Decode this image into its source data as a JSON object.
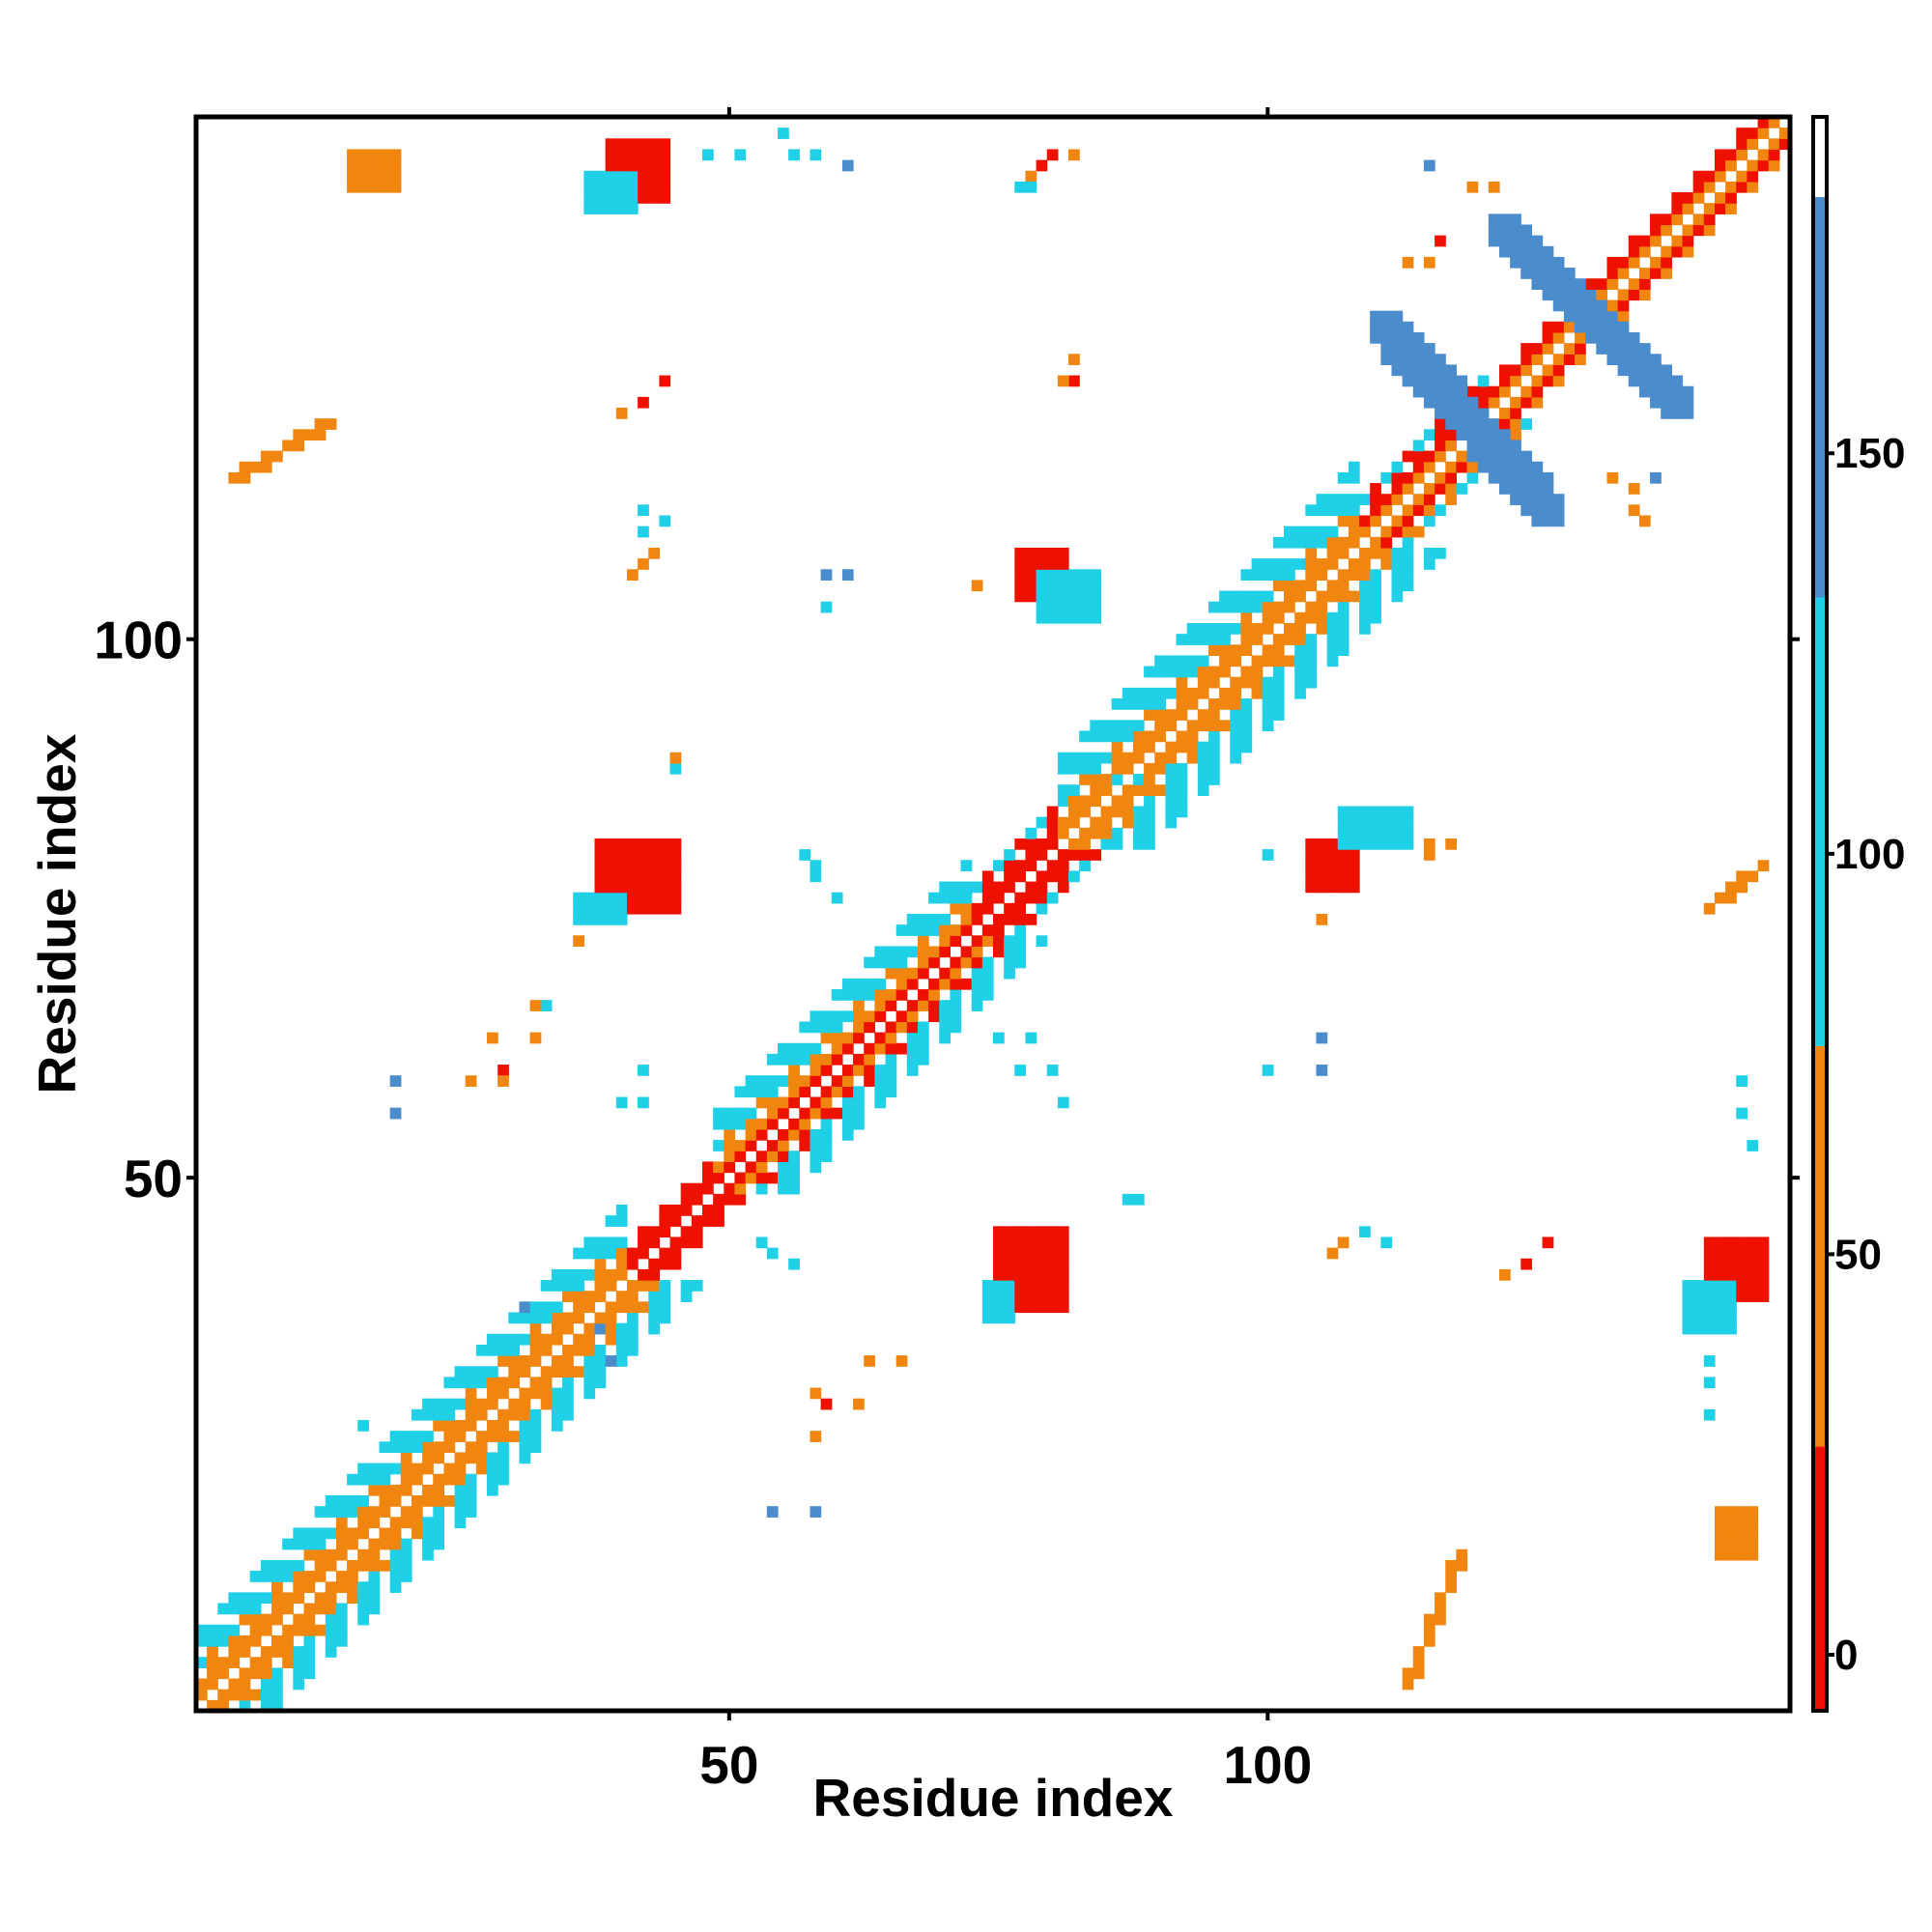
{
  "chart_data": {
    "type": "heatmap",
    "title": "",
    "xlabel": "Residue index",
    "ylabel": "Residue index",
    "xlim": [
      1,
      148
    ],
    "ylim": [
      1,
      148
    ],
    "x_ticks": [
      50,
      100
    ],
    "y_ticks": [
      50,
      100
    ],
    "grid": false,
    "colorbar": {
      "ticks": [
        0,
        50,
        100,
        150
      ],
      "range": [
        -7,
        192
      ],
      "bands": [
        {
          "from": -7,
          "to": 26,
          "color": "#ee1100"
        },
        {
          "from": 26,
          "to": 76,
          "color": "#f0860f"
        },
        {
          "from": 76,
          "to": 132,
          "color": "#1fd0e6"
        },
        {
          "from": 132,
          "to": 182,
          "color": "#4a8ccc"
        },
        {
          "from": 182,
          "to": 192,
          "color": "#ffffff"
        }
      ]
    },
    "colors": {
      "red": "#ee1100",
      "orange": "#f0860f",
      "cyan": "#1fd0e6",
      "steelblue": "#4a8ccc"
    },
    "diagonal_bands": [
      {
        "from": 1,
        "to": 40,
        "upper": "orange",
        "lower": "orange",
        "outer": "cyan",
        "outer_width": 4
      },
      {
        "from": 40,
        "to": 48,
        "upper": "red",
        "lower": "red",
        "outer": null,
        "outer_width": 0
      },
      {
        "from": 48,
        "to": 72,
        "upper": "orange",
        "lower": "red",
        "outer": "cyan",
        "outer_width": 4
      },
      {
        "from": 72,
        "to": 80,
        "upper": "red",
        "lower": "red",
        "outer": "cyan",
        "outer_width": 1
      },
      {
        "from": 80,
        "to": 108,
        "upper": "orange",
        "lower": "orange",
        "outer": "cyan",
        "outer_width": 5
      },
      {
        "from": 108,
        "to": 120,
        "upper": "red",
        "lower": "orange",
        "outer": "cyan",
        "outer_width": 1
      },
      {
        "from": 120,
        "to": 148,
        "upper": "red",
        "lower": "orange",
        "outer": null,
        "outer_width": 0
      }
    ],
    "patches": [
      {
        "x0": 75,
        "y0": 38,
        "x1": 81,
        "y1": 45,
        "color": "red"
      },
      {
        "x0": 38,
        "y0": 75,
        "x1": 45,
        "y1": 81,
        "color": "red"
      },
      {
        "x0": 104,
        "y0": 77,
        "x1": 108,
        "y1": 81,
        "color": "red"
      },
      {
        "x0": 77,
        "y0": 104,
        "x1": 81,
        "y1": 108,
        "color": "red"
      },
      {
        "x0": 39,
        "y0": 141,
        "x1": 44,
        "y1": 146,
        "color": "red"
      },
      {
        "x0": 141,
        "y0": 39,
        "x1": 146,
        "y1": 44,
        "color": "red"
      },
      {
        "x0": 15,
        "y0": 142,
        "x1": 19,
        "y1": 145,
        "color": "orange"
      },
      {
        "x0": 142,
        "y0": 15,
        "x1": 145,
        "y1": 19,
        "color": "orange"
      },
      {
        "x0": 79,
        "y0": 102,
        "x1": 84,
        "y1": 106,
        "color": "cyan"
      },
      {
        "x0": 107,
        "y0": 81,
        "x1": 113,
        "y1": 84,
        "color": "cyan"
      },
      {
        "x0": 37,
        "y0": 140,
        "x1": 41,
        "y1": 143,
        "color": "cyan"
      },
      {
        "x0": 139,
        "y0": 36,
        "x1": 143,
        "y1": 40,
        "color": "cyan"
      },
      {
        "x0": 74,
        "y0": 37,
        "x1": 76,
        "y1": 40,
        "color": "cyan"
      },
      {
        "x0": 36,
        "y0": 74,
        "x1": 40,
        "y1": 76,
        "color": "cyan"
      }
    ],
    "strips": [
      {
        "ax": 111,
        "ay": 129,
        "bx": 126,
        "by": 112,
        "width": 2.4,
        "color": "steelblue"
      },
      {
        "ax": 122,
        "ay": 138,
        "bx": 138,
        "by": 122,
        "width": 2.4,
        "color": "steelblue"
      },
      {
        "ax": 4,
        "ay": 115,
        "bx": 13,
        "by": 120,
        "width": 1.2,
        "color": "orange"
      },
      {
        "ax": 113,
        "ay": 3,
        "bx": 118,
        "by": 15,
        "width": 1.1,
        "color": "orange"
      },
      {
        "ax": 141,
        "ay": 75,
        "bx": 146,
        "by": 79,
        "width": 1.0,
        "color": "orange"
      }
    ],
    "scatter_cells": [
      [
        61,
        144,
        "steelblue"
      ],
      [
        58,
        145,
        "cyan"
      ],
      [
        55,
        147,
        "cyan"
      ],
      [
        51,
        145,
        "cyan"
      ],
      [
        48,
        145,
        "cyan"
      ],
      [
        56,
        145,
        "cyan"
      ],
      [
        80,
        145,
        "red"
      ],
      [
        82,
        145,
        "orange"
      ],
      [
        79,
        144,
        "red"
      ],
      [
        78,
        143,
        "orange"
      ],
      [
        77,
        142,
        "cyan"
      ],
      [
        78,
        142,
        "cyan"
      ],
      [
        119,
        142,
        "orange"
      ],
      [
        121,
        142,
        "orange"
      ],
      [
        115,
        144,
        "steelblue"
      ],
      [
        113,
        135,
        "orange"
      ],
      [
        115,
        135,
        "orange"
      ],
      [
        116,
        137,
        "red"
      ],
      [
        44,
        124,
        "red"
      ],
      [
        42,
        122,
        "red"
      ],
      [
        40,
        121,
        "orange"
      ],
      [
        82,
        126,
        "orange"
      ],
      [
        82,
        124,
        "red"
      ],
      [
        81,
        124,
        "orange"
      ],
      [
        42,
        112,
        "cyan"
      ],
      [
        44,
        111,
        "cyan"
      ],
      [
        42,
        110,
        "cyan"
      ],
      [
        43,
        108,
        "orange"
      ],
      [
        42,
        107,
        "orange"
      ],
      [
        41,
        106,
        "orange"
      ],
      [
        59,
        106,
        "steelblue"
      ],
      [
        61,
        106,
        "steelblue"
      ],
      [
        59,
        103,
        "cyan"
      ],
      [
        80,
        103,
        "cyan"
      ],
      [
        73,
        105,
        "orange"
      ],
      [
        136,
        115,
        "steelblue"
      ],
      [
        132,
        115,
        "orange"
      ],
      [
        134,
        114,
        "orange"
      ],
      [
        134,
        112,
        "orange"
      ],
      [
        135,
        111,
        "orange"
      ],
      [
        45,
        88,
        "cyan"
      ],
      [
        45,
        89,
        "orange"
      ],
      [
        91,
        88,
        "cyan"
      ],
      [
        88,
        87,
        "cyan"
      ],
      [
        86,
        87,
        "cyan"
      ],
      [
        57,
        80,
        "cyan"
      ],
      [
        58,
        79,
        "cyan"
      ],
      [
        58,
        78,
        "cyan"
      ],
      [
        60,
        76,
        "cyan"
      ],
      [
        100,
        80,
        "cyan"
      ],
      [
        105,
        74,
        "orange"
      ],
      [
        115,
        81,
        "orange"
      ],
      [
        117,
        81,
        "orange"
      ],
      [
        115,
        80,
        "orange"
      ],
      [
        36,
        72,
        "orange"
      ],
      [
        33,
        66,
        "cyan"
      ],
      [
        32,
        66,
        "orange"
      ],
      [
        28,
        63,
        "orange"
      ],
      [
        32,
        63,
        "orange"
      ],
      [
        29,
        60,
        "red"
      ],
      [
        29,
        59,
        "orange"
      ],
      [
        26,
        59,
        "orange"
      ],
      [
        19,
        59,
        "steelblue"
      ],
      [
        19,
        56,
        "steelblue"
      ],
      [
        42,
        60,
        "cyan"
      ],
      [
        40,
        57,
        "cyan"
      ],
      [
        42,
        57,
        "cyan"
      ],
      [
        75,
        63,
        "cyan"
      ],
      [
        78,
        63,
        "cyan"
      ],
      [
        77,
        60,
        "cyan"
      ],
      [
        80,
        60,
        "cyan"
      ],
      [
        81,
        57,
        "cyan"
      ],
      [
        105,
        63,
        "steelblue"
      ],
      [
        100,
        60,
        "cyan"
      ],
      [
        105,
        60,
        "steelblue"
      ],
      [
        144,
        59,
        "cyan"
      ],
      [
        144,
        56,
        "cyan"
      ],
      [
        145,
        53,
        "cyan"
      ],
      [
        88,
        48,
        "cyan"
      ],
      [
        87,
        48,
        "cyan"
      ],
      [
        53,
        44,
        "cyan"
      ],
      [
        54,
        43,
        "cyan"
      ],
      [
        56,
        42,
        "cyan"
      ],
      [
        106,
        43,
        "orange"
      ],
      [
        107,
        44,
        "orange"
      ],
      [
        109,
        45,
        "cyan"
      ],
      [
        111,
        44,
        "cyan"
      ],
      [
        122,
        41,
        "orange"
      ],
      [
        124,
        42,
        "red"
      ],
      [
        126,
        44,
        "red"
      ],
      [
        140,
        36,
        "cyan"
      ],
      [
        141,
        33,
        "cyan"
      ],
      [
        141,
        31,
        "cyan"
      ],
      [
        141,
        28,
        "cyan"
      ],
      [
        31,
        38,
        "steelblue"
      ],
      [
        39,
        33,
        "steelblue"
      ],
      [
        63,
        33,
        "orange"
      ],
      [
        66,
        33,
        "orange"
      ],
      [
        58,
        30,
        "orange"
      ],
      [
        59,
        29,
        "red"
      ],
      [
        62,
        29,
        "orange"
      ],
      [
        58,
        26,
        "orange"
      ],
      [
        54,
        19,
        "steelblue"
      ],
      [
        58,
        19,
        "steelblue"
      ],
      [
        25,
        18,
        "cyan"
      ],
      [
        16,
        27,
        "cyan"
      ],
      [
        36,
        40,
        "cyan"
      ],
      [
        38,
        36,
        "steelblue"
      ]
    ]
  }
}
